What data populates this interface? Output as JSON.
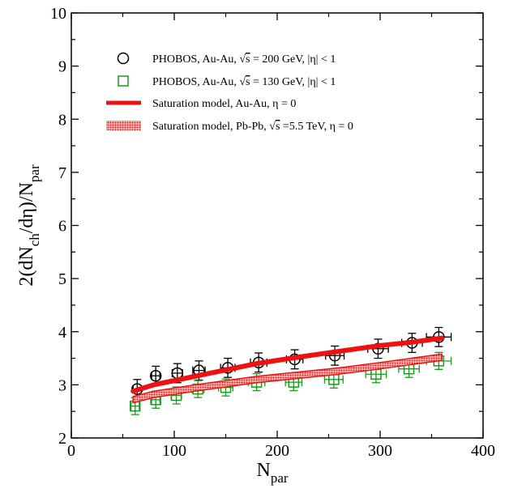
{
  "chart_data": {
    "type": "scatter",
    "xlabel": "N",
    "xlabel_sub": "par",
    "ylabel_parts": [
      "2(dN",
      "ch",
      "/dη)/N",
      "par"
    ],
    "xlim": [
      0,
      400
    ],
    "ylim": [
      2,
      10
    ],
    "xticks": [
      0,
      100,
      200,
      300,
      400
    ],
    "yticks": [
      2,
      3,
      4,
      5,
      6,
      7,
      8,
      9,
      10
    ],
    "grid": false,
    "legend_position": "top-left",
    "series": [
      {
        "name": "PHOBOS, Au-Au, √s = 200 GeV, |η| < 1",
        "legend_pre": "PHOBOS, Au-Au, ",
        "legend_sqrt": "s",
        "legend_post": " = 200 GeV, |η| < 1",
        "marker": "circle",
        "color": "#000000",
        "x": [
          64,
          82,
          103,
          124,
          152,
          182,
          217,
          256,
          298,
          331,
          357
        ],
        "y": [
          2.92,
          3.17,
          3.22,
          3.27,
          3.32,
          3.42,
          3.48,
          3.55,
          3.68,
          3.79,
          3.9
        ],
        "xerr": [
          4,
          4,
          5,
          6,
          7,
          8,
          8,
          9,
          10,
          10,
          12
        ],
        "yerr": [
          0.18,
          0.18,
          0.18,
          0.18,
          0.18,
          0.18,
          0.18,
          0.18,
          0.18,
          0.18,
          0.18
        ]
      },
      {
        "name": "PHOBOS, Au-Au, √s = 130 GeV, |η| < 1",
        "legend_pre": "PHOBOS, Au-Au, ",
        "legend_sqrt": "s",
        "legend_post": " = 130 GeV, |η| < 1",
        "marker": "square",
        "color": "#1a9a1a",
        "x": [
          62,
          82,
          102,
          123,
          150,
          180,
          216,
          255,
          296,
          328,
          357
        ],
        "y": [
          2.6,
          2.72,
          2.8,
          2.92,
          2.95,
          3.05,
          3.05,
          3.1,
          3.2,
          3.3,
          3.45
        ],
        "xerr": [
          4,
          4,
          5,
          6,
          7,
          8,
          8,
          9,
          10,
          10,
          12
        ],
        "yerr": [
          0.16,
          0.16,
          0.16,
          0.16,
          0.16,
          0.16,
          0.16,
          0.16,
          0.16,
          0.16,
          0.16
        ]
      },
      {
        "name": "Saturation model, Au-Au, η = 0",
        "legend_pre": "Saturation model, Au-Au, η = 0",
        "legend_sqrt": "",
        "legend_post": "",
        "marker": "line",
        "color": "#ee1111",
        "x": [
          60,
          80,
          100,
          120,
          150,
          180,
          220,
          260,
          300,
          330,
          360
        ],
        "y": [
          2.88,
          3.0,
          3.08,
          3.16,
          3.28,
          3.4,
          3.52,
          3.63,
          3.74,
          3.8,
          3.88
        ]
      },
      {
        "name": "Saturation model, Pb-Pb, √s =5.5 TeV, η = 0",
        "legend_pre": "Saturation model, Pb-Pb, ",
        "legend_sqrt": "s",
        "legend_post": " =5.5 TeV, η = 0",
        "marker": "band",
        "color": "#ee1111",
        "x": [
          60,
          80,
          100,
          120,
          150,
          180,
          220,
          260,
          300,
          330,
          360
        ],
        "y": [
          2.72,
          2.82,
          2.88,
          2.94,
          3.02,
          3.1,
          3.18,
          3.26,
          3.36,
          3.44,
          3.52
        ]
      }
    ]
  }
}
